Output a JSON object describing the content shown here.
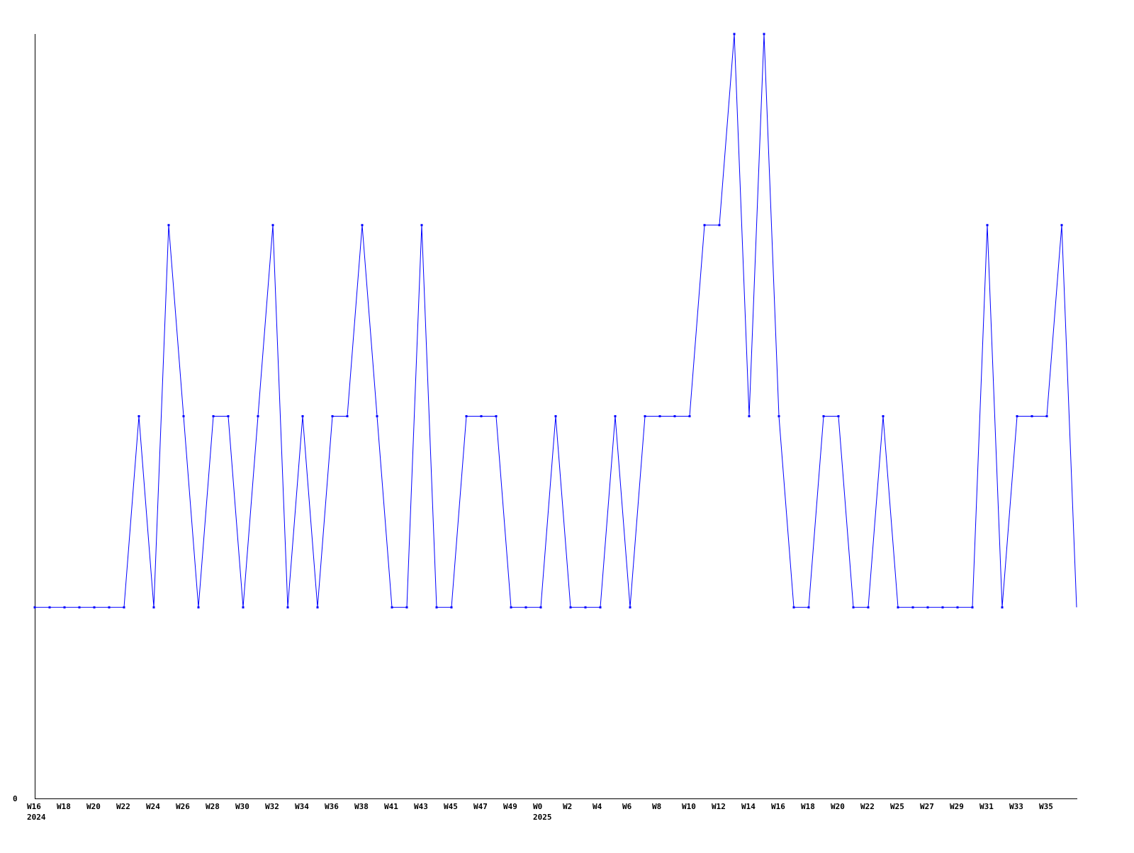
{
  "chart_data": {
    "type": "line",
    "title": "",
    "xlabel": "",
    "ylabel": "",
    "ylim": [
      0,
      4
    ],
    "y_tick_labels": [
      "0"
    ],
    "grid": false,
    "line_color": "#0000ff",
    "x_tick_labels": [
      "W16",
      "W18",
      "W20",
      "W22",
      "W24",
      "W26",
      "W28",
      "W30",
      "W32",
      "W34",
      "W36",
      "W38",
      "W41",
      "W43",
      "W45",
      "W47",
      "W49",
      "W0",
      "W2",
      "W4",
      "W6",
      "W8",
      "W10",
      "W12",
      "W14",
      "W16",
      "W18",
      "W20",
      "W22",
      "W25",
      "W27",
      "W29",
      "W31",
      "W33",
      "W35"
    ],
    "year_labels": [
      {
        "label": "2024",
        "tick_index": 0
      },
      {
        "label": "2025",
        "tick_index": 17
      }
    ],
    "values": [
      1,
      1,
      1,
      1,
      1,
      1,
      1,
      2,
      1,
      3,
      2,
      1,
      2,
      2,
      1,
      2,
      3,
      1,
      2,
      1,
      2,
      2,
      3,
      2,
      1,
      1,
      3,
      1,
      1,
      2,
      2,
      2,
      1,
      1,
      1,
      2,
      1,
      1,
      1,
      2,
      1,
      2,
      2,
      2,
      2,
      3,
      3,
      4,
      2,
      4,
      2,
      1,
      1,
      2,
      2,
      1,
      1,
      2,
      1,
      1,
      1,
      1,
      1,
      1,
      3,
      1,
      2,
      2,
      2,
      3,
      1
    ]
  }
}
